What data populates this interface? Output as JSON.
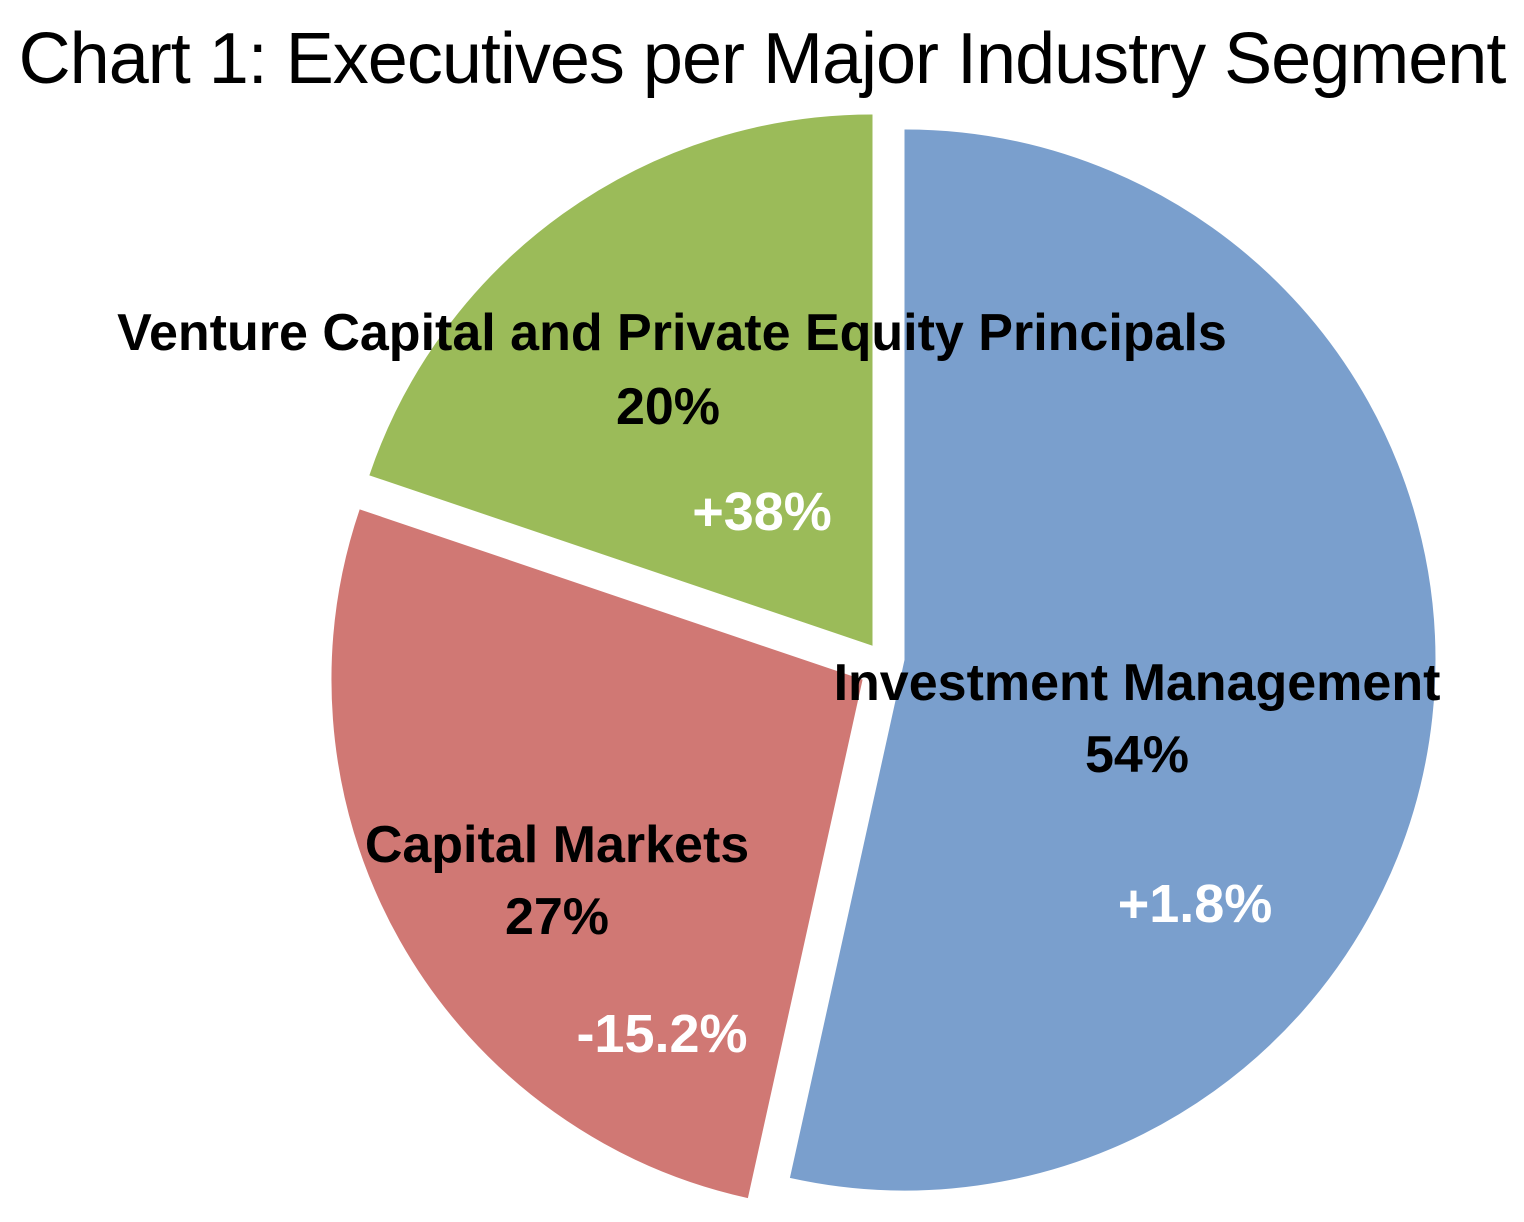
{
  "chart_data": {
    "type": "pie",
    "title": "Chart 1: Executives per Major Industry Segment",
    "exploded": true,
    "slices": [
      {
        "key": "im",
        "label": "Investment Management",
        "percent_label": "54%",
        "value": 54,
        "change_label": "+1.8%",
        "color": "#7a9fcd"
      },
      {
        "key": "cm",
        "label": "Capital Markets",
        "percent_label": "27%",
        "value": 27,
        "change_label": "-15.2%",
        "color": "#d07874"
      },
      {
        "key": "vc",
        "label": "Venture Capital and Private Equity Principals",
        "percent_label": "20%",
        "value": 20,
        "change_label": "+38%",
        "color": "#9bbb59"
      }
    ]
  }
}
